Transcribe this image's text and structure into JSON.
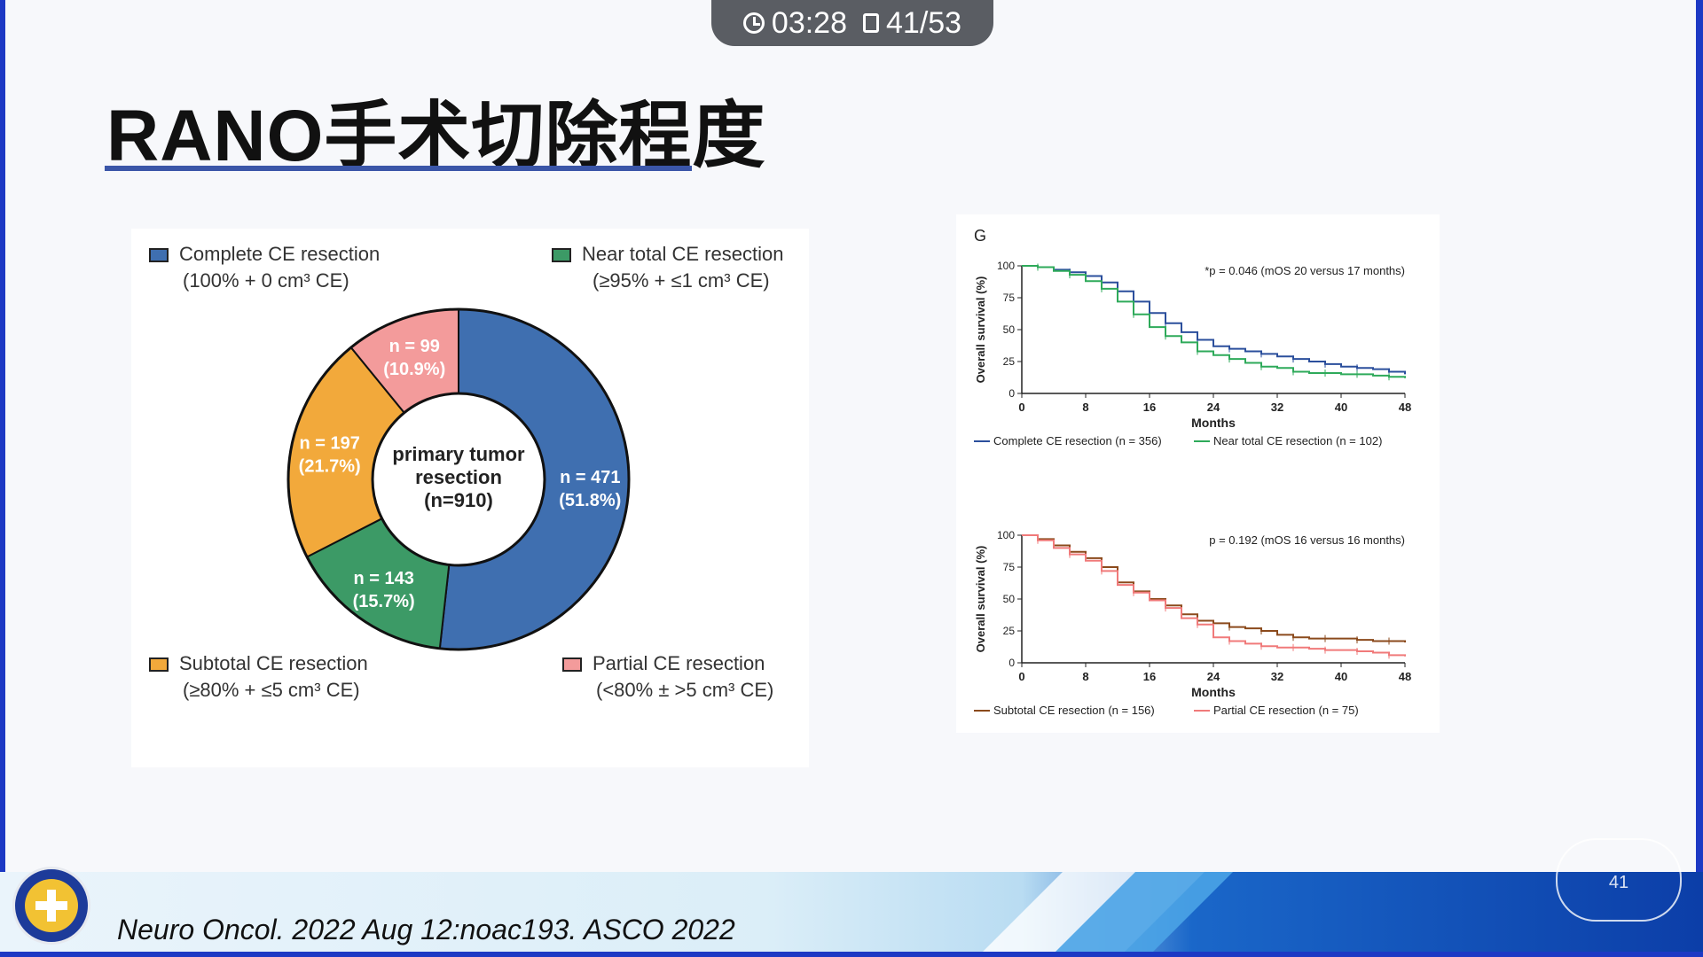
{
  "status_bar": {
    "time": "03:28",
    "page": "41/53"
  },
  "slide": {
    "title": "RANO手术切除程度",
    "citation": "Neuro Oncol. 2022 Aug 12:noac193. ASCO 2022",
    "watermark_page": "41"
  },
  "donut": {
    "center_lines": [
      "primary tumor",
      "resection",
      "(n=910)"
    ],
    "legend": [
      {
        "name": "Complete CE resection",
        "sub": "(100% + 0 cm³ CE)",
        "color": "#3f6fb0"
      },
      {
        "name": "Near total CE resection",
        "sub": "(≥95% + ≤1 cm³ CE)",
        "color": "#3c9a66"
      },
      {
        "name": "Subtotal CE resection",
        "sub": "(≥80% + ≤5 cm³ CE)",
        "color": "#f2a93b"
      },
      {
        "name": "Partial CE resection",
        "sub": "(<80% ± >5 cm³ CE)",
        "color": "#f39b9b"
      }
    ]
  },
  "chart_data": [
    {
      "type": "pie",
      "labels": [
        "Complete CE resection",
        "Near total CE resection",
        "Subtotal CE resection",
        "Partial CE resection"
      ],
      "values": [
        471,
        143,
        197,
        99
      ],
      "percent_labels": [
        "(51.8%)",
        "(15.7%)",
        "(21.7%)",
        "(10.9%)"
      ],
      "count_labels": [
        "n = 471",
        "n = 143",
        "n = 197",
        "n = 99"
      ],
      "colors": [
        "#3f6fb0",
        "#3c9a66",
        "#f2a93b",
        "#f39b9b"
      ]
    },
    {
      "type": "line",
      "panel_label": "G",
      "annotation": "*p = 0.046 (mOS 20 versus 17 months)",
      "xlabel": "Months",
      "ylabel": "Overall survival (%)",
      "xlim": [
        0,
        48
      ],
      "ylim": [
        0,
        100
      ],
      "xticks": [
        0,
        8,
        16,
        24,
        32,
        40,
        48
      ],
      "yticks": [
        0,
        25,
        50,
        75,
        100
      ],
      "series": [
        {
          "name": "Complete CE resection (n = 356)",
          "color": "#2b4f9c",
          "x": [
            0,
            2,
            4,
            6,
            8,
            10,
            12,
            14,
            16,
            18,
            20,
            22,
            24,
            26,
            28,
            30,
            32,
            34,
            36,
            38,
            40,
            42,
            44,
            46,
            48
          ],
          "y": [
            100,
            99,
            97,
            95,
            92,
            87,
            80,
            72,
            63,
            55,
            48,
            42,
            37,
            35,
            33,
            31,
            29,
            27,
            25,
            23,
            21,
            20,
            19,
            17,
            15
          ]
        },
        {
          "name": "Near total CE resection (n = 102)",
          "color": "#2eaa5a",
          "x": [
            0,
            2,
            4,
            6,
            8,
            10,
            12,
            14,
            16,
            18,
            20,
            22,
            24,
            26,
            28,
            30,
            32,
            34,
            36,
            38,
            40,
            42,
            44,
            46,
            48
          ],
          "y": [
            100,
            99,
            96,
            93,
            88,
            82,
            72,
            62,
            52,
            45,
            40,
            33,
            30,
            27,
            24,
            21,
            20,
            17,
            16,
            16,
            15,
            15,
            14,
            13,
            12
          ]
        }
      ]
    },
    {
      "type": "line",
      "annotation": "p = 0.192 (mOS 16 versus 16 months)",
      "xlabel": "Months",
      "ylabel": "Overall survival (%)",
      "xlim": [
        0,
        48
      ],
      "ylim": [
        0,
        100
      ],
      "xticks": [
        0,
        8,
        16,
        24,
        32,
        40,
        48
      ],
      "yticks": [
        0,
        25,
        50,
        75,
        100
      ],
      "series": [
        {
          "name": "Subtotal CE resection (n = 156)",
          "color": "#8b4a1c",
          "x": [
            0,
            2,
            4,
            6,
            8,
            10,
            12,
            14,
            16,
            18,
            20,
            22,
            24,
            26,
            28,
            30,
            32,
            34,
            36,
            38,
            40,
            42,
            44,
            46,
            48
          ],
          "y": [
            100,
            97,
            92,
            87,
            82,
            75,
            63,
            56,
            50,
            45,
            38,
            33,
            31,
            28,
            27,
            25,
            22,
            20,
            19,
            19,
            19,
            18,
            17,
            17,
            16
          ]
        },
        {
          "name": "Partial CE resection (n = 75)",
          "color": "#f07a7a",
          "x": [
            0,
            2,
            4,
            6,
            8,
            10,
            12,
            14,
            16,
            18,
            20,
            22,
            24,
            26,
            28,
            30,
            32,
            34,
            36,
            38,
            40,
            42,
            44,
            46,
            48
          ],
          "y": [
            100,
            96,
            90,
            85,
            80,
            72,
            61,
            55,
            49,
            43,
            35,
            30,
            20,
            17,
            15,
            13,
            12,
            12,
            11,
            10,
            10,
            9,
            8,
            6,
            5
          ]
        }
      ]
    }
  ]
}
